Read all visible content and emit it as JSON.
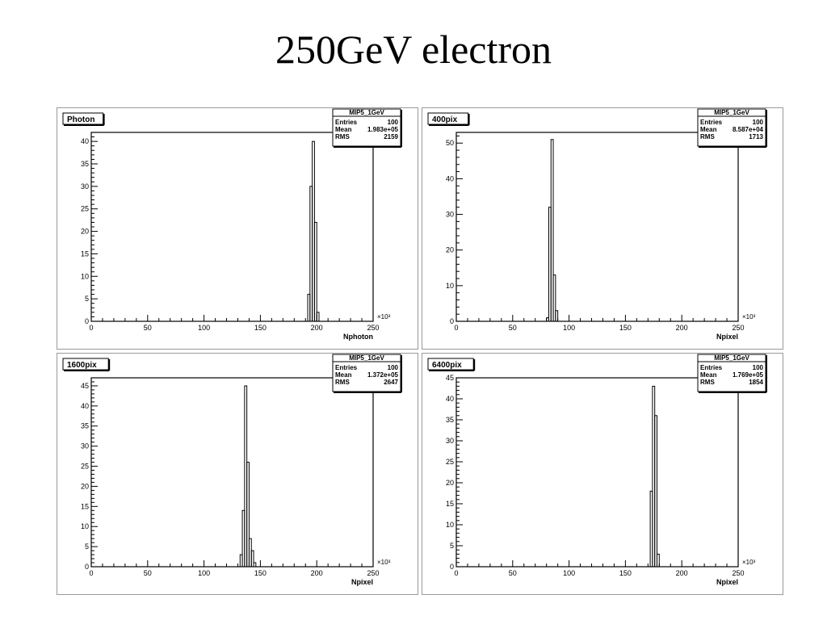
{
  "slide": {
    "title": "250GeV electron"
  },
  "chart_data": [
    {
      "type": "bar",
      "panel_label": "Photon",
      "stats": {
        "name": "MIP5_1GeV",
        "entries": "100",
        "mean": "1.983e+05",
        "rms": "2159"
      },
      "xlabel": "Nphoton",
      "xlim": [
        0,
        250
      ],
      "x_exponent": "×10³",
      "x_ticks": [
        0,
        50,
        100,
        150,
        200,
        250
      ],
      "ylim": [
        0,
        42
      ],
      "y_ticks": [
        0,
        5,
        10,
        15,
        20,
        25,
        30,
        35,
        40
      ],
      "bin_edges": [
        192,
        194,
        196,
        198,
        200,
        202,
        204
      ],
      "values": [
        6,
        30,
        40,
        22,
        2,
        0
      ]
    },
    {
      "type": "bar",
      "panel_label": "400pix",
      "stats": {
        "name": "MIP5_1GeV",
        "entries": "100",
        "mean": "8.587e+04",
        "rms": "1713"
      },
      "xlabel": "Npixel",
      "xlim": [
        0,
        250
      ],
      "x_exponent": "×10³",
      "x_ticks": [
        0,
        50,
        100,
        150,
        200,
        250
      ],
      "ylim": [
        0,
        53
      ],
      "y_ticks": [
        0,
        10,
        20,
        30,
        40,
        50
      ],
      "bin_edges": [
        80,
        82,
        84,
        86,
        88,
        90
      ],
      "values": [
        1,
        32,
        51,
        13,
        3
      ]
    },
    {
      "type": "bar",
      "panel_label": "1600pix",
      "stats": {
        "name": "MIP5_1GeV",
        "entries": "100",
        "mean": "1.372e+05",
        "rms": "2647"
      },
      "xlabel": "Npixel",
      "xlim": [
        0,
        250
      ],
      "x_exponent": "×10³",
      "x_ticks": [
        0,
        50,
        100,
        150,
        200,
        250
      ],
      "ylim": [
        0,
        47
      ],
      "y_ticks": [
        0,
        5,
        10,
        15,
        20,
        25,
        30,
        35,
        40,
        45
      ],
      "bin_edges": [
        132,
        134,
        136,
        138,
        140,
        142,
        144,
        146,
        148
      ],
      "values": [
        3,
        14,
        45,
        26,
        7,
        4,
        1,
        0
      ]
    },
    {
      "type": "bar",
      "panel_label": "6400pix",
      "stats": {
        "name": "MIP5_1GeV",
        "entries": "100",
        "mean": "1.769e+05",
        "rms": "1854"
      },
      "xlabel": "Npixel",
      "xlim": [
        0,
        250
      ],
      "x_exponent": "×10³",
      "x_ticks": [
        0,
        50,
        100,
        150,
        200,
        250
      ],
      "ylim": [
        0,
        45
      ],
      "y_ticks": [
        0,
        5,
        10,
        15,
        20,
        25,
        30,
        35,
        40,
        45
      ],
      "bin_edges": [
        172,
        174,
        176,
        178,
        180,
        182
      ],
      "values": [
        18,
        43,
        36,
        3,
        0
      ]
    }
  ]
}
